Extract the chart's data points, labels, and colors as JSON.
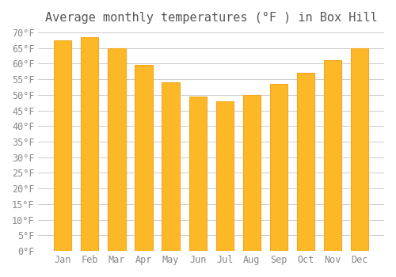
{
  "title": "Average monthly temperatures (°F ) in Box Hill",
  "months": [
    "Jan",
    "Feb",
    "Mar",
    "Apr",
    "May",
    "Jun",
    "Jul",
    "Aug",
    "Sep",
    "Oct",
    "Nov",
    "Dec"
  ],
  "values": [
    67.5,
    68.5,
    65.0,
    59.5,
    54.0,
    49.5,
    48.0,
    50.0,
    53.5,
    57.0,
    61.0,
    65.0
  ],
  "bar_color": "#FDB827",
  "bar_edge_color": "#F5A623",
  "background_color": "#ffffff",
  "grid_color": "#cccccc",
  "ylim": [
    0,
    70
  ],
  "yticks": [
    0,
    5,
    10,
    15,
    20,
    25,
    30,
    35,
    40,
    45,
    50,
    55,
    60,
    65,
    70
  ],
  "title_fontsize": 11,
  "tick_fontsize": 8.5,
  "title_color": "#555555",
  "tick_color": "#888888",
  "bar_width": 0.65
}
